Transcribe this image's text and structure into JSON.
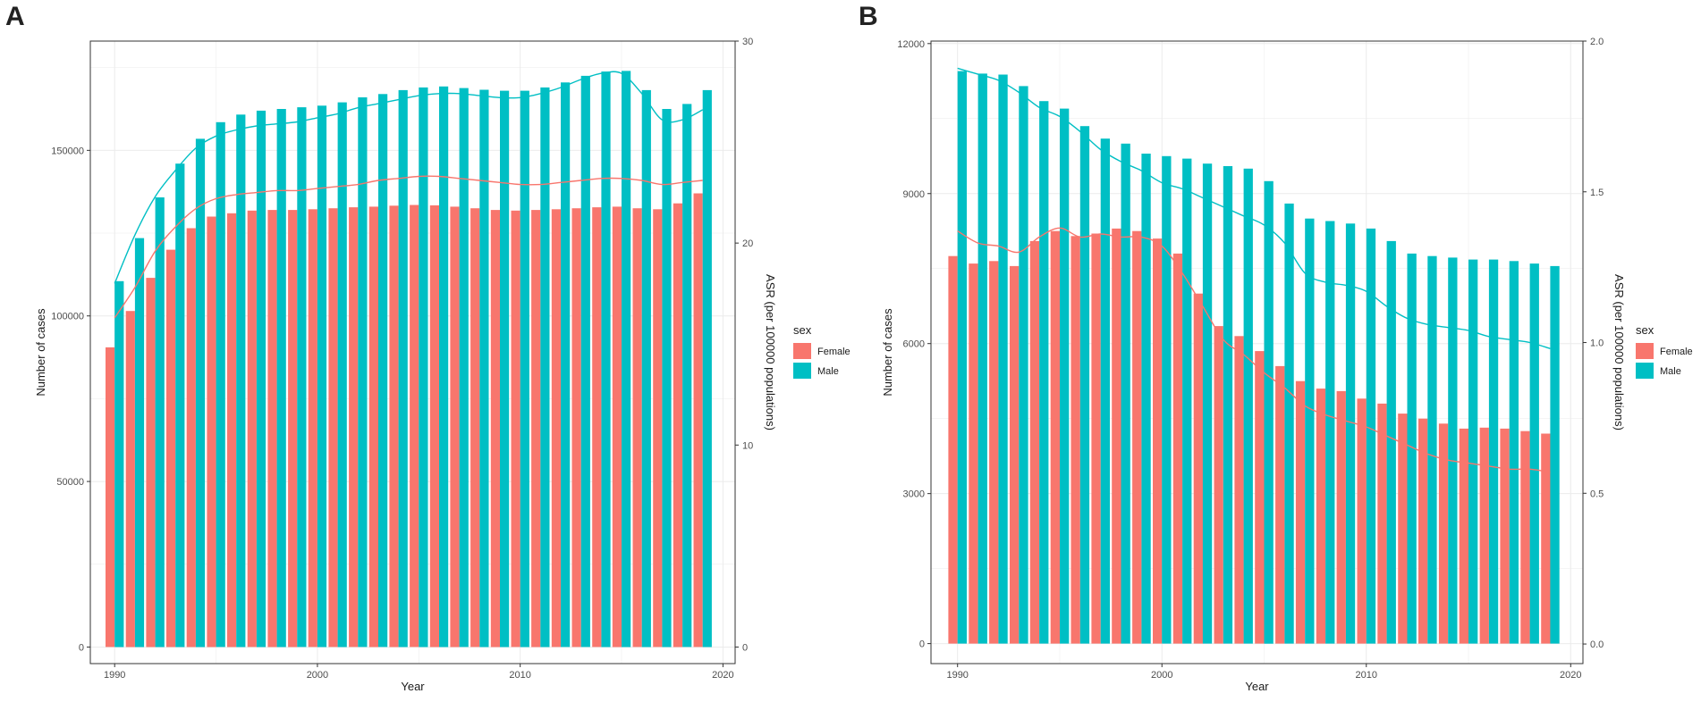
{
  "colors": {
    "female": "#F8766D",
    "male": "#00BFC4",
    "grid": "#ebebeb",
    "frame": "#333333"
  },
  "chart_data": [
    {
      "panel": "A",
      "type": "bar",
      "secondary_type": "line",
      "title": "",
      "xlabel": "Year",
      "ylabel": "Number of cases",
      "y2label": "ASR (per 100000 populations)",
      "legend_title": "sex",
      "legend_position": "right",
      "xlim": [
        1988.8,
        2020.6
      ],
      "ylim": [
        -5000,
        183000
      ],
      "y2lim": [
        -0.82,
        30.0
      ],
      "x_ticks": [
        1990,
        2000,
        2010,
        2020
      ],
      "x_tick_labels": [
        "1990",
        "2000",
        "2010",
        "2020"
      ],
      "y_ticks": [
        0,
        50000,
        100000,
        150000
      ],
      "y_tick_labels": [
        "0",
        "50000",
        "100000",
        "150000"
      ],
      "y2_ticks": [
        0,
        10,
        20,
        30
      ],
      "y2_tick_labels": [
        "0",
        "10",
        "20",
        "30"
      ],
      "categories": [
        1990,
        1991,
        1992,
        1993,
        1994,
        1995,
        1996,
        1997,
        1998,
        1999,
        2000,
        2001,
        2002,
        2003,
        2004,
        2005,
        2006,
        2007,
        2008,
        2009,
        2010,
        2011,
        2012,
        2013,
        2014,
        2015,
        2016,
        2017,
        2018,
        2019
      ],
      "series": [
        {
          "name": "Female",
          "values": [
            90500,
            101500,
            111500,
            120000,
            126500,
            130000,
            131000,
            131800,
            132000,
            132000,
            132200,
            132500,
            132800,
            133000,
            133300,
            133500,
            133400,
            133000,
            132500,
            132000,
            131800,
            132000,
            132200,
            132500,
            132800,
            133000,
            132500,
            132200,
            134000,
            137000
          ]
        },
        {
          "name": "Male",
          "values": [
            110500,
            123500,
            135800,
            146000,
            153500,
            158500,
            160800,
            162000,
            162500,
            163000,
            163500,
            164500,
            166000,
            167000,
            168200,
            169000,
            169300,
            168800,
            168300,
            168000,
            168000,
            169000,
            170500,
            172500,
            173800,
            174000,
            168200,
            162500,
            164000,
            168200
          ]
        }
      ],
      "asr_series": [
        {
          "name": "Female",
          "values": [
            16.3,
            17.8,
            19.6,
            20.8,
            21.7,
            22.2,
            22.4,
            22.5,
            22.6,
            22.6,
            22.7,
            22.8,
            22.9,
            23.1,
            23.2,
            23.3,
            23.3,
            23.2,
            23.1,
            23.0,
            22.9,
            22.9,
            23.0,
            23.1,
            23.2,
            23.2,
            23.1,
            22.9,
            23.0,
            23.1
          ]
        },
        {
          "name": "Male",
          "values": [
            18.0,
            20.4,
            22.3,
            23.6,
            24.7,
            25.3,
            25.6,
            25.8,
            25.9,
            26.0,
            26.2,
            26.4,
            26.7,
            26.9,
            27.1,
            27.3,
            27.4,
            27.4,
            27.3,
            27.2,
            27.2,
            27.4,
            27.7,
            28.1,
            28.4,
            28.4,
            27.4,
            26.1,
            26.1,
            26.6
          ]
        }
      ]
    },
    {
      "panel": "B",
      "type": "bar",
      "secondary_type": "line",
      "title": "",
      "xlabel": "Year",
      "ylabel": "Number of cases",
      "y2label": "ASR (per 100000 populations)",
      "legend_title": "sex",
      "legend_position": "right",
      "xlim": [
        1988.7,
        2020.6
      ],
      "ylim": [
        -400,
        12050
      ],
      "y2lim": [
        -0.065,
        2.0
      ],
      "x_ticks": [
        1990,
        2000,
        2010,
        2020
      ],
      "x_tick_labels": [
        "1990",
        "2000",
        "2010",
        "2020"
      ],
      "y_ticks": [
        0,
        3000,
        6000,
        9000,
        12000
      ],
      "y_tick_labels": [
        "0",
        "3000",
        "6000",
        "9000",
        "12000"
      ],
      "y2_ticks": [
        0.0,
        0.5,
        1.0,
        1.5,
        2.0
      ],
      "y2_tick_labels": [
        "0.0",
        "0.5",
        "1.0",
        "1.5",
        "2.0"
      ],
      "categories": [
        1990,
        1991,
        1992,
        1993,
        1994,
        1995,
        1996,
        1997,
        1998,
        1999,
        2000,
        2001,
        2002,
        2003,
        2004,
        2005,
        2006,
        2007,
        2008,
        2009,
        2010,
        2011,
        2012,
        2013,
        2014,
        2015,
        2016,
        2017,
        2018,
        2019
      ],
      "series": [
        {
          "name": "Female",
          "values": [
            7750,
            7600,
            7650,
            7550,
            8050,
            8250,
            8150,
            8200,
            8300,
            8250,
            8100,
            7800,
            7000,
            6350,
            6150,
            5850,
            5550,
            5250,
            5100,
            5050,
            4900,
            4800,
            4600,
            4500,
            4400,
            4300,
            4320,
            4300,
            4250,
            4200
          ]
        },
        {
          "name": "Male",
          "values": [
            11450,
            11400,
            11380,
            11150,
            10850,
            10700,
            10350,
            10100,
            10000,
            9800,
            9750,
            9700,
            9600,
            9550,
            9500,
            9250,
            8800,
            8500,
            8450,
            8400,
            8300,
            8050,
            7800,
            7750,
            7720,
            7680,
            7680,
            7650,
            7600,
            7550
          ]
        }
      ],
      "asr_series": [
        {
          "name": "Female",
          "values": [
            1.37,
            1.33,
            1.32,
            1.3,
            1.35,
            1.38,
            1.35,
            1.36,
            1.35,
            1.35,
            1.32,
            1.23,
            1.12,
            1.01,
            0.96,
            0.9,
            0.85,
            0.79,
            0.76,
            0.74,
            0.72,
            0.69,
            0.66,
            0.63,
            0.61,
            0.6,
            0.59,
            0.58,
            0.58,
            0.57
          ]
        },
        {
          "name": "Male",
          "values": [
            1.91,
            1.89,
            1.87,
            1.83,
            1.78,
            1.75,
            1.7,
            1.64,
            1.6,
            1.57,
            1.53,
            1.51,
            1.48,
            1.45,
            1.42,
            1.39,
            1.33,
            1.23,
            1.2,
            1.19,
            1.17,
            1.12,
            1.08,
            1.06,
            1.05,
            1.04,
            1.02,
            1.01,
            1.0,
            0.98
          ]
        }
      ]
    }
  ]
}
